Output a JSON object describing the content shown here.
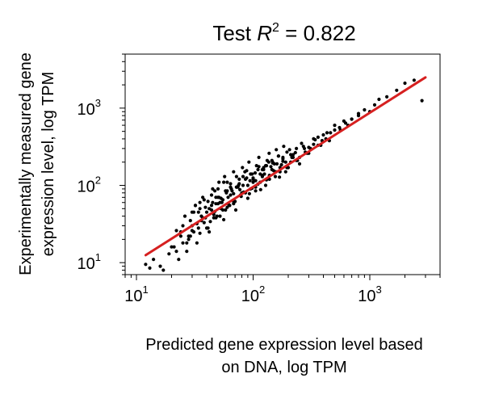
{
  "chart_data": {
    "type": "scatter",
    "title_prefix": "Test ",
    "title_symbol": "R",
    "title_superscript": "2",
    "title_suffix": " = 0.822",
    "xlabel_lines": [
      "Predicted gene expression level based",
      "on DNA, log TPM"
    ],
    "ylabel_lines": [
      "Experimentally measured gene",
      "expression level, log TPM"
    ],
    "x_scale": "log",
    "y_scale": "log",
    "xlim": [
      8,
      4000
    ],
    "ylim": [
      7,
      5000
    ],
    "x_ticks": [
      {
        "value": 10,
        "base": "10",
        "exp": "1"
      },
      {
        "value": 100,
        "base": "10",
        "exp": "2"
      },
      {
        "value": 1000,
        "base": "10",
        "exp": "3"
      }
    ],
    "y_ticks": [
      {
        "value": 10,
        "base": "10",
        "exp": "1"
      },
      {
        "value": 100,
        "base": "10",
        "exp": "2"
      },
      {
        "value": 1000,
        "base": "10",
        "exp": "3"
      }
    ],
    "grid": false,
    "legend": "none",
    "point_color": "#000000",
    "fit_line_color": "#d62020",
    "fit_line": {
      "x": [
        12,
        3000
      ],
      "y": [
        12.5,
        2500
      ]
    },
    "points": {
      "x": [
        12,
        13,
        14,
        16,
        17,
        19,
        21,
        22,
        23,
        24,
        25,
        27,
        28,
        29,
        30,
        31,
        33,
        34,
        35,
        36,
        38,
        40,
        42,
        44,
        46,
        48,
        50,
        52,
        55,
        58,
        60,
        63,
        66,
        70,
        74,
        78,
        82,
        86,
        90,
        95,
        100,
        105,
        110,
        115,
        120,
        125,
        130,
        138,
        145,
        150,
        160,
        170,
        180,
        190,
        200,
        210,
        220,
        235,
        250,
        270,
        290,
        310,
        330,
        360,
        390,
        420,
        460,
        500,
        550,
        600,
        650,
        700,
        800,
        900,
        1000,
        1100,
        1200,
        1400,
        1700,
        2000,
        2400,
        2800,
        24,
        26,
        28,
        30,
        32,
        34,
        36,
        38,
        40,
        42,
        44,
        46,
        48,
        50,
        52,
        55,
        58,
        61,
        64,
        68,
        72,
        76,
        80,
        85,
        90,
        95,
        100,
        105,
        112,
        120,
        128,
        136,
        145,
        155,
        165,
        175,
        190,
        205,
        220,
        240,
        260,
        280,
        300,
        330,
        360,
        400,
        450,
        500,
        560,
        620,
        700,
        800,
        20,
        22,
        25,
        27,
        29,
        31,
        33,
        35,
        37,
        39,
        41,
        43,
        45,
        47,
        49,
        51,
        53,
        56,
        59,
        62,
        65,
        68,
        71,
        75,
        79,
        83,
        88,
        93,
        98,
        104,
        110,
        116,
        123,
        130,
        138,
        147,
        157,
        168,
        180,
        195,
        210,
        230,
        250,
        275,
        300,
        340,
        380,
        430,
        30,
        32,
        35,
        37,
        39,
        41,
        44,
        47,
        50,
        53,
        56,
        60,
        64,
        68,
        72,
        77,
        82,
        88,
        94,
        100,
        107,
        115,
        123,
        132,
        142,
        152,
        165,
        180,
        195,
        215,
        235,
        45,
        48,
        51,
        54,
        57,
        60,
        64,
        68,
        72,
        76,
        81,
        86,
        92,
        98,
        105,
        112,
        120,
        128,
        137,
        147,
        158,
        170,
        183
      ],
      "y": [
        9.5,
        8.5,
        11,
        9,
        8,
        13,
        16,
        14,
        11,
        22,
        18,
        14,
        20,
        35,
        26,
        25,
        18,
        28,
        60,
        40,
        33,
        45,
        25,
        55,
        38,
        58,
        70,
        40,
        65,
        48,
        110,
        55,
        85,
        62,
        95,
        75,
        130,
        80,
        100,
        90,
        120,
        95,
        160,
        110,
        130,
        140,
        180,
        120,
        210,
        155,
        190,
        150,
        220,
        200,
        170,
        250,
        230,
        210,
        190,
        320,
        260,
        300,
        340,
        420,
        380,
        400,
        480,
        520,
        560,
        680,
        600,
        720,
        800,
        950,
        900,
        1100,
        1300,
        1400,
        1700,
        2100,
        2300,
        1250,
        25,
        40,
        22,
        30,
        55,
        45,
        35,
        65,
        28,
        50,
        75,
        42,
        38,
        90,
        60,
        48,
        85,
        70,
        105,
        58,
        95,
        120,
        80,
        150,
        68,
        140,
        110,
        85,
        175,
        135,
        100,
        200,
        160,
        130,
        240,
        185,
        150,
        290,
        250,
        210,
        350,
        270,
        310,
        400,
        330,
        450,
        380,
        600,
        520,
        640,
        720,
        850,
        16,
        26,
        30,
        18,
        22,
        45,
        32,
        24,
        38,
        52,
        28,
        34,
        60,
        46,
        40,
        70,
        50,
        36,
        80,
        56,
        90,
        62,
        48,
        100,
        72,
        82,
        125,
        78,
        92,
        145,
        104,
        88,
        170,
        118,
        135,
        195,
        150,
        128,
        230,
        170,
        200,
        265,
        230,
        300,
        260,
        390,
        330,
        480,
        45,
        55,
        50,
        70,
        38,
        62,
        48,
        85,
        58,
        68,
        110,
        52,
        95,
        78,
        130,
        88,
        100,
        155,
        115,
        125,
        180,
        140,
        160,
        210,
        175,
        190,
        240,
        205,
        270,
        230,
        300,
        90,
        70,
        110,
        60,
        130,
        85,
        75,
        150,
        95,
        105,
        170,
        120,
        200,
        140,
        115,
        230,
        160,
        180,
        260,
        200,
        290,
        170,
        320
      ]
    }
  }
}
